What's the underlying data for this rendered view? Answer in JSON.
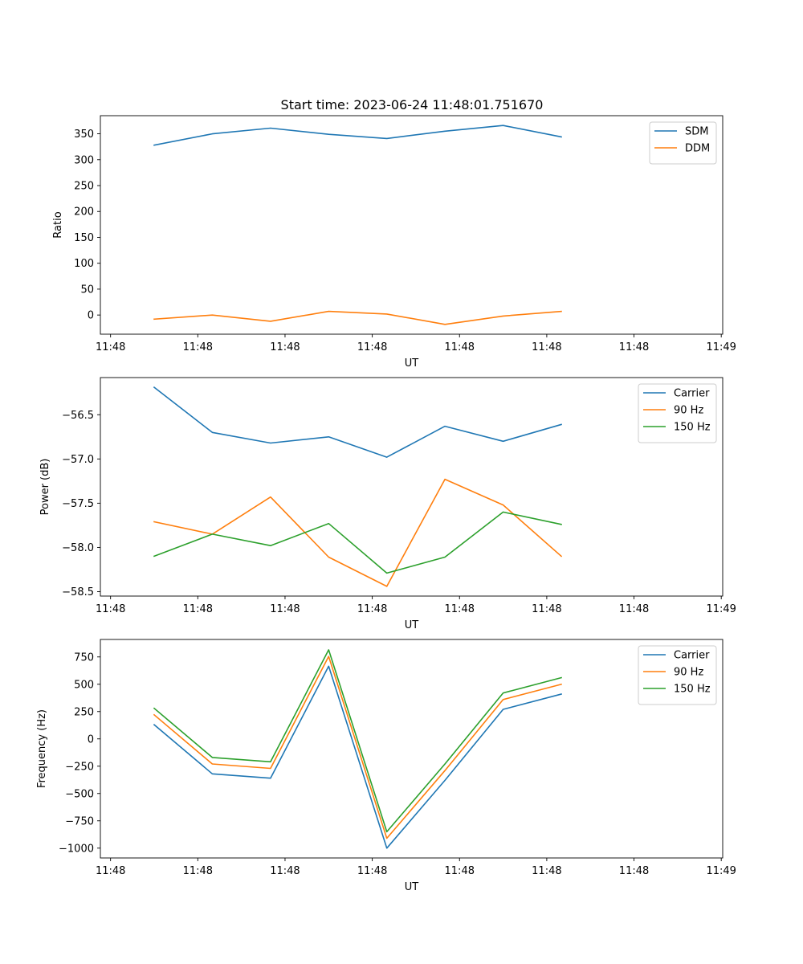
{
  "figure": {
    "title": "Start time: 2023-06-24 11:48:01.751670"
  },
  "chart_data": [
    {
      "type": "line",
      "title": "Start time: 2023-06-24 11:48:01.751670",
      "xlabel": "UT",
      "ylabel": "Ratio",
      "x_ticklabels": [
        "11:48",
        "11:48",
        "11:48",
        "11:48",
        "11:48",
        "11:48",
        "11:48",
        "11:49"
      ],
      "x_tick_values": [
        0.0,
        1.2,
        2.4,
        3.6,
        4.8,
        6.0,
        7.2,
        8.4
      ],
      "x": [
        0.6,
        1.4,
        2.2,
        3.0,
        3.8,
        4.6,
        5.4,
        6.2
      ],
      "xlim": [
        -0.14,
        8.42
      ],
      "yticks": [
        0,
        50,
        100,
        150,
        200,
        250,
        300,
        350
      ],
      "ylim": [
        -37,
        385
      ],
      "grid": false,
      "legend_position": "upper right",
      "series": [
        {
          "name": "SDM",
          "color": "#1f77b4",
          "values": [
            328,
            350,
            361,
            349,
            341,
            355,
            366,
            344
          ]
        },
        {
          "name": "DDM",
          "color": "#ff7f0e",
          "values": [
            -8,
            0,
            -12,
            7,
            2,
            -18,
            -2,
            7
          ]
        }
      ]
    },
    {
      "type": "line",
      "title": "",
      "xlabel": "UT",
      "ylabel": "Power (dB)",
      "x_ticklabels": [
        "11:48",
        "11:48",
        "11:48",
        "11:48",
        "11:48",
        "11:48",
        "11:48",
        "11:49"
      ],
      "x_tick_values": [
        0.0,
        1.2,
        2.4,
        3.6,
        4.8,
        6.0,
        7.2,
        8.4
      ],
      "x": [
        0.6,
        1.4,
        2.2,
        3.0,
        3.8,
        4.6,
        5.4,
        6.2
      ],
      "xlim": [
        -0.14,
        8.42
      ],
      "yticks": [
        -56.5,
        -57.0,
        -57.5,
        -58.0,
        -58.5
      ],
      "ytick_labels": [
        "−56.5",
        "−57.0",
        "−57.5",
        "−58.0",
        "−58.5"
      ],
      "ylim": [
        -58.55,
        -56.08
      ],
      "grid": false,
      "legend_position": "upper right",
      "series": [
        {
          "name": "Carrier",
          "color": "#1f77b4",
          "values": [
            -56.19,
            -56.7,
            -56.82,
            -56.75,
            -56.98,
            -56.63,
            -56.8,
            -56.61
          ]
        },
        {
          "name": "90 Hz",
          "color": "#ff7f0e",
          "values": [
            -57.71,
            -57.85,
            -57.43,
            -58.11,
            -58.44,
            -57.23,
            -57.52,
            -58.1
          ]
        },
        {
          "name": "150 Hz",
          "color": "#2ca02c",
          "values": [
            -58.1,
            -57.85,
            -57.98,
            -57.73,
            -58.29,
            -58.11,
            -57.6,
            -57.74
          ]
        }
      ]
    },
    {
      "type": "line",
      "title": "",
      "xlabel": "UT",
      "ylabel": "Frequency (Hz)",
      "x_ticklabels": [
        "11:48",
        "11:48",
        "11:48",
        "11:48",
        "11:48",
        "11:48",
        "11:48",
        "11:49"
      ],
      "x_tick_values": [
        0.0,
        1.2,
        2.4,
        3.6,
        4.8,
        6.0,
        7.2,
        8.4
      ],
      "x": [
        0.6,
        1.4,
        2.2,
        3.0,
        3.8,
        4.6,
        5.4,
        6.2
      ],
      "xlim": [
        -0.14,
        8.42
      ],
      "yticks": [
        750,
        500,
        250,
        0,
        -250,
        -500,
        -750,
        -1000
      ],
      "ytick_labels": [
        "750",
        "500",
        "250",
        "0",
        "−250",
        "−500",
        "−750",
        "−1000"
      ],
      "ylim": [
        -1090,
        910
      ],
      "grid": false,
      "legend_position": "upper right",
      "series": [
        {
          "name": "Carrier",
          "color": "#1f77b4",
          "values": [
            130,
            -320,
            -360,
            665,
            -1000,
            -380,
            270,
            410
          ]
        },
        {
          "name": "90 Hz",
          "color": "#ff7f0e",
          "values": [
            220,
            -230,
            -270,
            755,
            -910,
            -290,
            360,
            500
          ]
        },
        {
          "name": "150 Hz",
          "color": "#2ca02c",
          "values": [
            280,
            -170,
            -210,
            815,
            -850,
            -230,
            420,
            560
          ]
        }
      ]
    }
  ]
}
